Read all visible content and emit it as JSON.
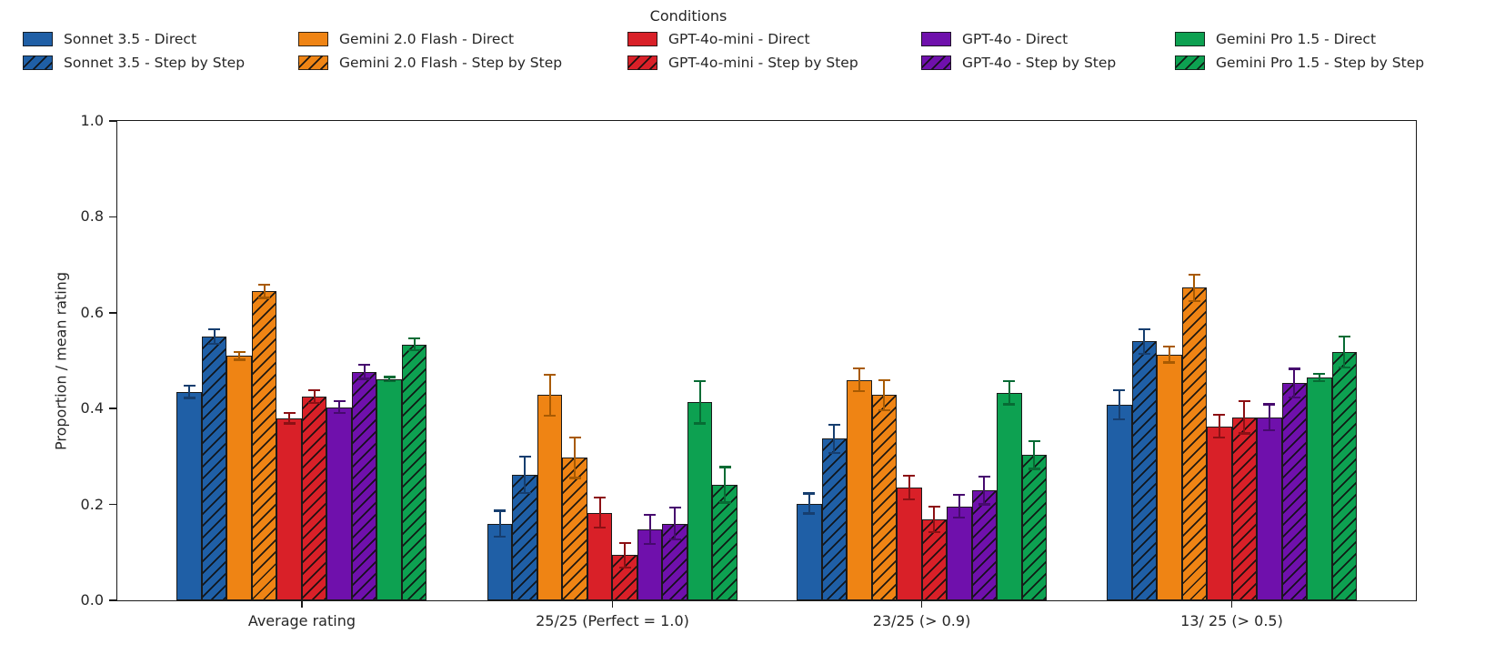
{
  "legend": {
    "title": "Conditions"
  },
  "chart_data": {
    "type": "bar",
    "title": "",
    "legend_title": "Conditions",
    "legend_position": "top",
    "grid": false,
    "xlabel": "",
    "ylabel": "Proportion / mean rating",
    "ylim": [
      0.0,
      1.0
    ],
    "yticks": [
      0.0,
      0.2,
      0.4,
      0.6,
      0.8,
      1.0
    ],
    "bar_edge_color": "#1a1a1a",
    "categories": [
      "Average rating",
      "25/25 (Perfect = 1.0)",
      "23/25 (> 0.9)",
      "13/ 25 (> 0.5)"
    ],
    "series": [
      {
        "name": "Sonnet 3.5 - Direct",
        "model": "Sonnet 3.5",
        "condition": "Direct",
        "color": "#1f5fa6",
        "error_color": "#163e6f",
        "hatch": false,
        "values": [
          0.435,
          0.16,
          0.202,
          0.408
        ],
        "errors": [
          0.015,
          0.029,
          0.023,
          0.032
        ]
      },
      {
        "name": "Sonnet 3.5 - Step by Step",
        "model": "Sonnet 3.5",
        "condition": "Step by Step",
        "color": "#1f5fa6",
        "error_color": "#163e6f",
        "hatch": true,
        "values": [
          0.55,
          0.262,
          0.337,
          0.54
        ],
        "errors": [
          0.017,
          0.04,
          0.031,
          0.028
        ]
      },
      {
        "name": "Gemini 2.0 Flash - Direct",
        "model": "Gemini 2.0 Flash",
        "condition": "Direct",
        "color": "#ef8414",
        "error_color": "#a85a02",
        "hatch": false,
        "values": [
          0.51,
          0.428,
          0.46,
          0.513
        ],
        "errors": [
          0.01,
          0.045,
          0.026,
          0.019
        ]
      },
      {
        "name": "Gemini 2.0 Flash - Step by Step",
        "model": "Gemini 2.0 Flash",
        "condition": "Step by Step",
        "color": "#ef8414",
        "error_color": "#a85a02",
        "hatch": true,
        "values": [
          0.645,
          0.297,
          0.428,
          0.652
        ],
        "errors": [
          0.016,
          0.044,
          0.033,
          0.03
        ]
      },
      {
        "name": "GPT-4o-mini - Direct",
        "model": "GPT-4o-mini",
        "condition": "Direct",
        "color": "#d92028",
        "error_color": "#8c1014",
        "hatch": false,
        "values": [
          0.38,
          0.183,
          0.235,
          0.363
        ],
        "errors": [
          0.013,
          0.034,
          0.027,
          0.026
        ]
      },
      {
        "name": "GPT-4o-mini - Step by Step",
        "model": "GPT-4o-mini",
        "condition": "Step by Step",
        "color": "#d92028",
        "error_color": "#8c1014",
        "hatch": true,
        "values": [
          0.425,
          0.094,
          0.169,
          0.382
        ],
        "errors": [
          0.016,
          0.028,
          0.029,
          0.036
        ]
      },
      {
        "name": "GPT-4o - Direct",
        "model": "GPT-4o",
        "condition": "Direct",
        "color": "#6f10ac",
        "error_color": "#460a6e",
        "hatch": false,
        "values": [
          0.403,
          0.148,
          0.196,
          0.382
        ],
        "errors": [
          0.014,
          0.033,
          0.026,
          0.029
        ]
      },
      {
        "name": "GPT-4o - Step by Step",
        "model": "GPT-4o",
        "condition": "Step by Step",
        "color": "#6f10ac",
        "error_color": "#460a6e",
        "hatch": true,
        "values": [
          0.477,
          0.16,
          0.229,
          0.453
        ],
        "errors": [
          0.017,
          0.035,
          0.031,
          0.032
        ]
      },
      {
        "name": "Gemini Pro 1.5 - Direct",
        "model": "Gemini Pro 1.5",
        "condition": "Direct",
        "color": "#0da151",
        "error_color": "#076b34",
        "hatch": false,
        "values": [
          0.462,
          0.413,
          0.433,
          0.465
        ],
        "errors": [
          0.006,
          0.046,
          0.026,
          0.01
        ]
      },
      {
        "name": "Gemini Pro 1.5 - Step by Step",
        "model": "Gemini Pro 1.5",
        "condition": "Step by Step",
        "color": "#0da151",
        "error_color": "#076b34",
        "hatch": true,
        "values": [
          0.534,
          0.241,
          0.303,
          0.518
        ],
        "errors": [
          0.014,
          0.039,
          0.031,
          0.034
        ]
      }
    ]
  }
}
